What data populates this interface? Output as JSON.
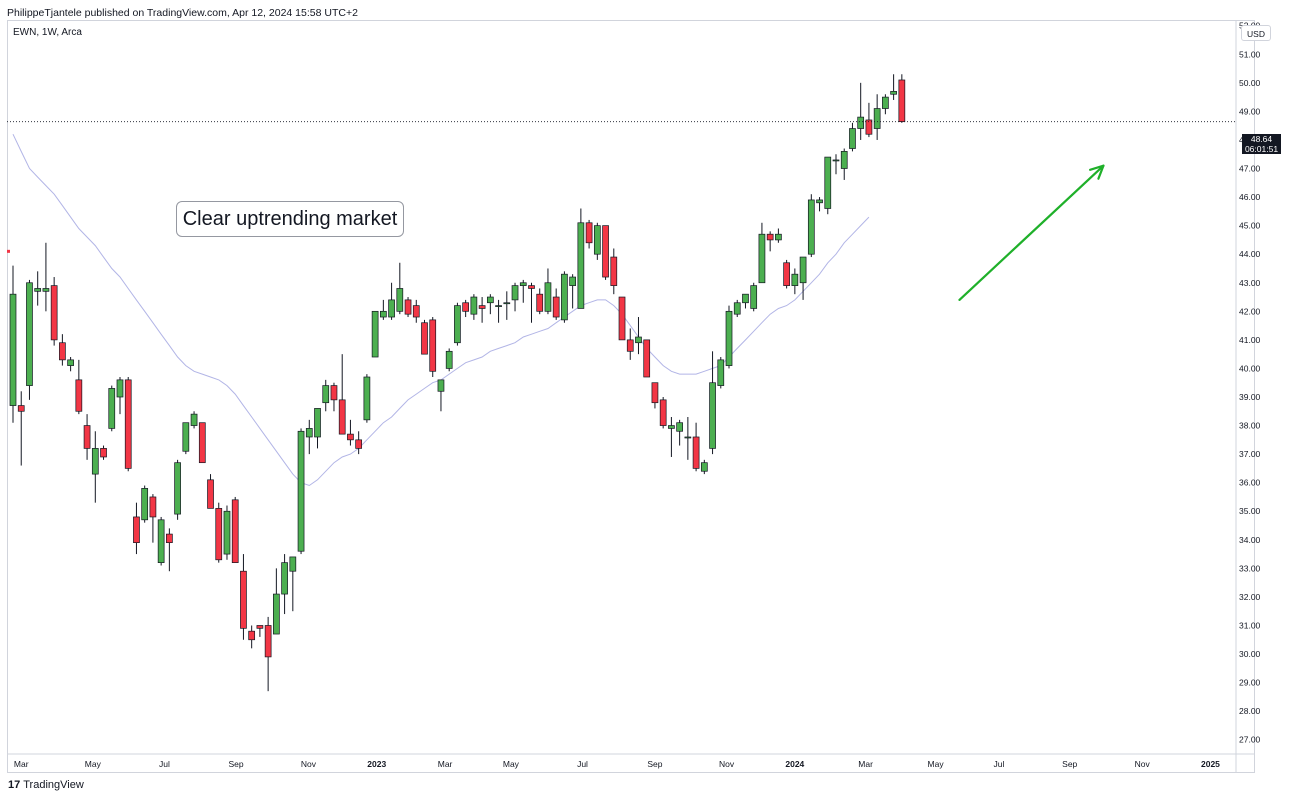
{
  "header": {
    "text": "PhilippeTjantele published on TradingView.com, Apr 12, 2024 15:58 UTC+2"
  },
  "symbol_line": "EWN, 1W, Arca",
  "currency_button": "USD",
  "annotation": "Clear uptrending market",
  "last_price": {
    "price": "48.64",
    "countdown": "06:01:51"
  },
  "footer": {
    "logo": "17",
    "brand": "TradingView"
  },
  "colors": {
    "up": "#4caf50",
    "down": "#f23645",
    "ma": "#b2b5e6",
    "arrow": "#1fb02a",
    "last_price_line": "#131722"
  },
  "chart_data": {
    "type": "candlestick",
    "interval": "1W",
    "symbol": "EWN",
    "exchange": "Arca",
    "y_axis_side": "right",
    "ylim": [
      26.5,
      52.2
    ],
    "y_ticks": [
      27,
      28,
      29,
      30,
      31,
      32,
      33,
      34,
      35,
      36,
      37,
      38,
      39,
      40,
      41,
      42,
      43,
      44,
      45,
      46,
      47,
      48,
      49,
      50,
      51,
      52
    ],
    "x_tick_labels": [
      "Mar",
      "May",
      "Jul",
      "Sep",
      "Nov",
      "2023",
      "Mar",
      "May",
      "Jul",
      "Sep",
      "Nov",
      "2024",
      "Mar",
      "May",
      "Jul",
      "Sep",
      "Nov",
      "2025"
    ],
    "x_tick_bold": [
      false,
      false,
      false,
      false,
      false,
      true,
      false,
      false,
      false,
      false,
      false,
      true,
      false,
      false,
      false,
      false,
      false,
      true
    ],
    "x_tick_bar_positions": [
      1.0,
      9.7,
      18.4,
      27.1,
      35.9,
      44.2,
      52.5,
      60.5,
      69.2,
      78.0,
      86.7,
      95.0,
      103.6,
      112.1,
      119.8,
      128.4,
      137.2,
      145.5
    ],
    "last_price": 48.64,
    "grid": false,
    "candles": [
      {
        "o": 38.7,
        "h": 43.6,
        "l": 38.1,
        "c": 42.6
      },
      {
        "o": 38.7,
        "h": 39.2,
        "l": 36.6,
        "c": 38.5
      },
      {
        "o": 39.4,
        "h": 43.1,
        "l": 38.9,
        "c": 43.0
      },
      {
        "o": 42.7,
        "h": 43.4,
        "l": 42.2,
        "c": 42.8
      },
      {
        "o": 42.7,
        "h": 44.4,
        "l": 42.0,
        "c": 42.8
      },
      {
        "o": 42.9,
        "h": 43.2,
        "l": 40.8,
        "c": 41.0
      },
      {
        "o": 40.9,
        "h": 41.2,
        "l": 40.1,
        "c": 40.3
      },
      {
        "o": 40.1,
        "h": 40.4,
        "l": 39.9,
        "c": 40.3
      },
      {
        "o": 39.6,
        "h": 40.3,
        "l": 38.4,
        "c": 38.5
      },
      {
        "o": 38.0,
        "h": 38.4,
        "l": 36.8,
        "c": 37.2
      },
      {
        "o": 36.3,
        "h": 37.8,
        "l": 35.3,
        "c": 37.2
      },
      {
        "o": 37.2,
        "h": 37.3,
        "l": 36.8,
        "c": 36.9
      },
      {
        "o": 37.9,
        "h": 39.4,
        "l": 37.8,
        "c": 39.3
      },
      {
        "o": 39.0,
        "h": 39.7,
        "l": 38.4,
        "c": 39.6
      },
      {
        "o": 39.6,
        "h": 39.7,
        "l": 36.4,
        "c": 36.5
      },
      {
        "o": 34.8,
        "h": 35.3,
        "l": 33.5,
        "c": 33.9
      },
      {
        "o": 34.7,
        "h": 35.9,
        "l": 34.6,
        "c": 35.8
      },
      {
        "o": 35.5,
        "h": 35.6,
        "l": 33.9,
        "c": 34.8
      },
      {
        "o": 33.2,
        "h": 34.8,
        "l": 33.1,
        "c": 34.7
      },
      {
        "o": 34.2,
        "h": 34.4,
        "l": 32.9,
        "c": 33.9
      },
      {
        "o": 34.9,
        "h": 36.8,
        "l": 34.7,
        "c": 36.7
      },
      {
        "o": 37.1,
        "h": 38.1,
        "l": 37.0,
        "c": 38.1
      },
      {
        "o": 38.0,
        "h": 38.5,
        "l": 37.9,
        "c": 38.4
      },
      {
        "o": 38.1,
        "h": 38.1,
        "l": 36.7,
        "c": 36.7
      },
      {
        "o": 36.1,
        "h": 36.3,
        "l": 35.1,
        "c": 35.1
      },
      {
        "o": 35.1,
        "h": 35.3,
        "l": 33.2,
        "c": 33.3
      },
      {
        "o": 33.5,
        "h": 35.2,
        "l": 33.3,
        "c": 35.0
      },
      {
        "o": 35.4,
        "h": 35.5,
        "l": 33.2,
        "c": 33.2
      },
      {
        "o": 32.9,
        "h": 33.5,
        "l": 30.5,
        "c": 30.9
      },
      {
        "o": 30.8,
        "h": 31.0,
        "l": 30.2,
        "c": 30.5
      },
      {
        "o": 31.0,
        "h": 31.0,
        "l": 30.6,
        "c": 30.9
      },
      {
        "o": 31.0,
        "h": 31.3,
        "l": 28.7,
        "c": 29.9
      },
      {
        "o": 30.7,
        "h": 33.0,
        "l": 30.7,
        "c": 32.1
      },
      {
        "o": 32.1,
        "h": 33.5,
        "l": 31.4,
        "c": 33.2
      },
      {
        "o": 32.9,
        "h": 33.4,
        "l": 31.5,
        "c": 33.4
      },
      {
        "o": 33.6,
        "h": 37.9,
        "l": 33.5,
        "c": 37.8
      },
      {
        "o": 37.6,
        "h": 38.2,
        "l": 37.0,
        "c": 37.9
      },
      {
        "o": 37.6,
        "h": 38.6,
        "l": 37.2,
        "c": 38.6
      },
      {
        "o": 38.8,
        "h": 39.6,
        "l": 38.5,
        "c": 39.4
      },
      {
        "o": 39.4,
        "h": 39.5,
        "l": 38.5,
        "c": 38.9
      },
      {
        "o": 38.9,
        "h": 40.5,
        "l": 37.7,
        "c": 37.7
      },
      {
        "o": 37.7,
        "h": 38.2,
        "l": 37.3,
        "c": 37.5
      },
      {
        "o": 37.5,
        "h": 37.8,
        "l": 37.0,
        "c": 37.2
      },
      {
        "o": 38.2,
        "h": 39.8,
        "l": 38.1,
        "c": 39.7
      },
      {
        "o": 40.4,
        "h": 42.0,
        "l": 40.4,
        "c": 42.0
      },
      {
        "o": 41.8,
        "h": 42.4,
        "l": 41.7,
        "c": 42.0
      },
      {
        "o": 41.8,
        "h": 43.0,
        "l": 41.7,
        "c": 42.4
      },
      {
        "o": 42.0,
        "h": 43.7,
        "l": 41.9,
        "c": 42.8
      },
      {
        "o": 42.4,
        "h": 42.5,
        "l": 41.8,
        "c": 41.9
      },
      {
        "o": 42.2,
        "h": 42.4,
        "l": 41.6,
        "c": 41.8
      },
      {
        "o": 41.6,
        "h": 41.7,
        "l": 40.5,
        "c": 40.5
      },
      {
        "o": 41.7,
        "h": 41.8,
        "l": 39.7,
        "c": 39.9
      },
      {
        "o": 39.2,
        "h": 39.6,
        "l": 38.5,
        "c": 39.6
      },
      {
        "o": 40.0,
        "h": 40.7,
        "l": 39.9,
        "c": 40.6
      },
      {
        "o": 40.9,
        "h": 42.3,
        "l": 40.8,
        "c": 42.2
      },
      {
        "o": 42.3,
        "h": 42.4,
        "l": 41.8,
        "c": 42.0
      },
      {
        "o": 41.9,
        "h": 42.6,
        "l": 41.7,
        "c": 42.5
      },
      {
        "o": 42.2,
        "h": 42.5,
        "l": 41.6,
        "c": 42.1
      },
      {
        "o": 42.3,
        "h": 42.6,
        "l": 41.9,
        "c": 42.5
      },
      {
        "o": 42.2,
        "h": 42.4,
        "l": 41.6,
        "c": 42.2
      },
      {
        "o": 42.3,
        "h": 42.7,
        "l": 41.7,
        "c": 42.3
      },
      {
        "o": 42.4,
        "h": 43.0,
        "l": 42.0,
        "c": 42.9
      },
      {
        "o": 42.9,
        "h": 43.1,
        "l": 42.3,
        "c": 43.0
      },
      {
        "o": 42.9,
        "h": 43.0,
        "l": 41.6,
        "c": 42.8
      },
      {
        "o": 42.6,
        "h": 42.8,
        "l": 41.9,
        "c": 42.0
      },
      {
        "o": 42.0,
        "h": 43.5,
        "l": 41.9,
        "c": 43.0
      },
      {
        "o": 42.5,
        "h": 42.8,
        "l": 41.7,
        "c": 41.8
      },
      {
        "o": 41.7,
        "h": 43.4,
        "l": 41.6,
        "c": 43.3
      },
      {
        "o": 42.9,
        "h": 43.3,
        "l": 42.1,
        "c": 43.2
      },
      {
        "o": 42.1,
        "h": 45.6,
        "l": 42.1,
        "c": 45.1
      },
      {
        "o": 45.1,
        "h": 45.2,
        "l": 44.2,
        "c": 44.4
      },
      {
        "o": 44.0,
        "h": 45.1,
        "l": 43.8,
        "c": 45.0
      },
      {
        "o": 45.0,
        "h": 45.0,
        "l": 43.1,
        "c": 43.2
      },
      {
        "o": 43.9,
        "h": 44.2,
        "l": 42.6,
        "c": 42.9
      },
      {
        "o": 42.5,
        "h": 42.5,
        "l": 41.0,
        "c": 41.0
      },
      {
        "o": 41.0,
        "h": 41.4,
        "l": 40.3,
        "c": 40.6
      },
      {
        "o": 40.9,
        "h": 41.8,
        "l": 40.5,
        "c": 41.1
      },
      {
        "o": 41.0,
        "h": 41.0,
        "l": 39.7,
        "c": 39.7
      },
      {
        "o": 39.5,
        "h": 39.5,
        "l": 38.6,
        "c": 38.8
      },
      {
        "o": 38.9,
        "h": 39.0,
        "l": 37.9,
        "c": 38.0
      },
      {
        "o": 37.9,
        "h": 38.3,
        "l": 36.9,
        "c": 38.0
      },
      {
        "o": 37.8,
        "h": 38.2,
        "l": 37.3,
        "c": 38.1
      },
      {
        "o": 37.6,
        "h": 38.3,
        "l": 36.8,
        "c": 37.6
      },
      {
        "o": 37.6,
        "h": 38.1,
        "l": 36.4,
        "c": 36.5
      },
      {
        "o": 36.4,
        "h": 36.8,
        "l": 36.3,
        "c": 36.7
      },
      {
        "o": 37.2,
        "h": 40.6,
        "l": 37.0,
        "c": 39.5
      },
      {
        "o": 39.4,
        "h": 40.4,
        "l": 39.3,
        "c": 40.3
      },
      {
        "o": 40.1,
        "h": 42.2,
        "l": 40.0,
        "c": 42.0
      },
      {
        "o": 41.9,
        "h": 42.4,
        "l": 41.8,
        "c": 42.3
      },
      {
        "o": 42.3,
        "h": 42.6,
        "l": 42.1,
        "c": 42.6
      },
      {
        "o": 42.1,
        "h": 43.0,
        "l": 42.0,
        "c": 42.9
      },
      {
        "o": 43.0,
        "h": 45.1,
        "l": 43.0,
        "c": 44.7
      },
      {
        "o": 44.7,
        "h": 44.8,
        "l": 44.1,
        "c": 44.5
      },
      {
        "o": 44.5,
        "h": 44.9,
        "l": 44.4,
        "c": 44.7
      },
      {
        "o": 43.7,
        "h": 43.8,
        "l": 42.8,
        "c": 42.9
      },
      {
        "o": 42.9,
        "h": 43.5,
        "l": 42.6,
        "c": 43.3
      },
      {
        "o": 43.0,
        "h": 43.9,
        "l": 42.4,
        "c": 43.9
      },
      {
        "o": 44.0,
        "h": 46.1,
        "l": 43.9,
        "c": 45.9
      },
      {
        "o": 45.8,
        "h": 46.0,
        "l": 45.5,
        "c": 45.9
      },
      {
        "o": 45.6,
        "h": 47.4,
        "l": 45.4,
        "c": 47.4
      },
      {
        "o": 47.3,
        "h": 47.5,
        "l": 46.8,
        "c": 47.3
      },
      {
        "o": 47.0,
        "h": 47.7,
        "l": 46.6,
        "c": 47.6
      },
      {
        "o": 47.7,
        "h": 48.6,
        "l": 47.6,
        "c": 48.4
      },
      {
        "o": 48.4,
        "h": 50.0,
        "l": 48.0,
        "c": 48.8
      },
      {
        "o": 48.7,
        "h": 49.3,
        "l": 48.1,
        "c": 48.2
      },
      {
        "o": 48.4,
        "h": 49.6,
        "l": 48.0,
        "c": 49.1
      },
      {
        "o": 49.1,
        "h": 49.6,
        "l": 48.9,
        "c": 49.5
      },
      {
        "o": 49.6,
        "h": 50.3,
        "l": 49.4,
        "c": 49.7
      },
      {
        "o": 50.1,
        "h": 50.3,
        "l": 48.6,
        "c": 48.64
      }
    ],
    "moving_average": {
      "start_index": 0,
      "values": [
        48.2,
        47.6,
        47.0,
        46.7,
        46.4,
        46.1,
        45.7,
        45.3,
        44.9,
        44.6,
        44.3,
        43.9,
        43.5,
        43.2,
        42.8,
        42.4,
        42.0,
        41.6,
        41.2,
        40.8,
        40.4,
        40.1,
        39.9,
        39.8,
        39.7,
        39.6,
        39.4,
        39.1,
        38.7,
        38.3,
        37.9,
        37.5,
        37.1,
        36.7,
        36.3,
        36.0,
        35.9,
        36.1,
        36.4,
        36.7,
        36.9,
        37.0,
        37.2,
        37.5,
        37.8,
        38.1,
        38.3,
        38.6,
        38.9,
        39.1,
        39.3,
        39.5,
        39.6,
        39.8,
        40.0,
        40.2,
        40.3,
        40.4,
        40.6,
        40.7,
        40.8,
        40.9,
        41.1,
        41.2,
        41.3,
        41.4,
        41.6,
        41.8,
        42.0,
        42.2,
        42.3,
        42.4,
        42.4,
        42.2,
        41.9,
        41.5,
        41.1,
        40.7,
        40.4,
        40.1,
        39.9,
        39.8,
        39.8,
        39.8,
        39.9,
        40.0,
        40.1,
        40.4,
        40.7,
        41.0,
        41.3,
        41.6,
        41.9,
        42.1,
        42.2,
        42.4,
        42.7,
        43.0,
        43.3,
        43.7,
        44.0,
        44.4,
        44.7,
        45.0,
        45.3
      ]
    },
    "arrow": {
      "from": {
        "bar": 115.0,
        "price": 42.4
      },
      "to": {
        "bar": 132.5,
        "price": 47.1
      }
    }
  }
}
